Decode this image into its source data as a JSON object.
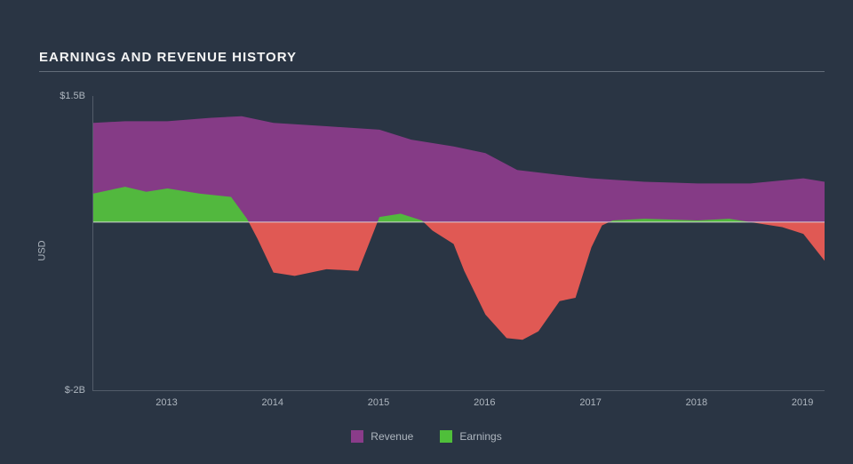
{
  "title": "EARNINGS AND REVENUE HISTORY",
  "chart": {
    "type": "area",
    "background_color": "#2a3544",
    "grid_color": "#4a5360",
    "axis_color": "#aeb6bf",
    "text_color": "#aeb6bf",
    "title_color": "#f5f5f5",
    "title_fontsize": 15,
    "label_fontsize": 11,
    "y_axis": {
      "title": "USD",
      "min": -2.0,
      "max": 1.5,
      "ticks": [
        {
          "value": 1.5,
          "label": "$1.5B"
        },
        {
          "value": -2.0,
          "label": "$-2B"
        }
      ]
    },
    "x_axis": {
      "min": 2012.3,
      "max": 2019.2,
      "ticks": [
        2013,
        2014,
        2015,
        2016,
        2017,
        2018,
        2019
      ]
    },
    "baseline": 0,
    "baseline_color": "#e8e8e8",
    "baseline_width": 1,
    "series": [
      {
        "name": "Revenue",
        "color": "#8a3c8a",
        "opacity": 0.95,
        "points": [
          [
            2012.3,
            1.18
          ],
          [
            2012.6,
            1.2
          ],
          [
            2013.0,
            1.2
          ],
          [
            2013.4,
            1.24
          ],
          [
            2013.7,
            1.26
          ],
          [
            2014.0,
            1.18
          ],
          [
            2014.5,
            1.14
          ],
          [
            2015.0,
            1.1
          ],
          [
            2015.3,
            0.98
          ],
          [
            2015.7,
            0.9
          ],
          [
            2016.0,
            0.82
          ],
          [
            2016.3,
            0.62
          ],
          [
            2016.7,
            0.56
          ],
          [
            2017.0,
            0.52
          ],
          [
            2017.5,
            0.48
          ],
          [
            2018.0,
            0.46
          ],
          [
            2018.5,
            0.46
          ],
          [
            2019.0,
            0.52
          ],
          [
            2019.2,
            0.48
          ]
        ]
      },
      {
        "name": "Earnings",
        "positive_color": "#4fbf3a",
        "negative_color": "#ea5c55",
        "opacity": 0.95,
        "points": [
          [
            2012.3,
            0.34
          ],
          [
            2012.6,
            0.42
          ],
          [
            2012.8,
            0.36
          ],
          [
            2013.0,
            0.4
          ],
          [
            2013.3,
            0.34
          ],
          [
            2013.6,
            0.3
          ],
          [
            2013.75,
            0.04
          ],
          [
            2013.85,
            -0.2
          ],
          [
            2014.0,
            -0.6
          ],
          [
            2014.2,
            -0.64
          ],
          [
            2014.5,
            -0.56
          ],
          [
            2014.8,
            -0.58
          ],
          [
            2014.95,
            -0.1
          ],
          [
            2015.0,
            0.06
          ],
          [
            2015.2,
            0.1
          ],
          [
            2015.4,
            0.02
          ],
          [
            2015.5,
            -0.1
          ],
          [
            2015.7,
            -0.26
          ],
          [
            2015.8,
            -0.58
          ],
          [
            2016.0,
            -1.1
          ],
          [
            2016.2,
            -1.38
          ],
          [
            2016.35,
            -1.4
          ],
          [
            2016.5,
            -1.3
          ],
          [
            2016.7,
            -0.94
          ],
          [
            2016.85,
            -0.9
          ],
          [
            2017.0,
            -0.3
          ],
          [
            2017.1,
            -0.04
          ],
          [
            2017.2,
            0.02
          ],
          [
            2017.5,
            0.04
          ],
          [
            2018.0,
            0.02
          ],
          [
            2018.3,
            0.04
          ],
          [
            2018.6,
            -0.02
          ],
          [
            2018.8,
            -0.06
          ],
          [
            2019.0,
            -0.14
          ],
          [
            2019.2,
            -0.46
          ]
        ]
      }
    ],
    "legend": {
      "items": [
        {
          "label": "Revenue",
          "color": "#8a3c8a"
        },
        {
          "label": "Earnings",
          "color": "#4fbf3a"
        }
      ]
    }
  }
}
